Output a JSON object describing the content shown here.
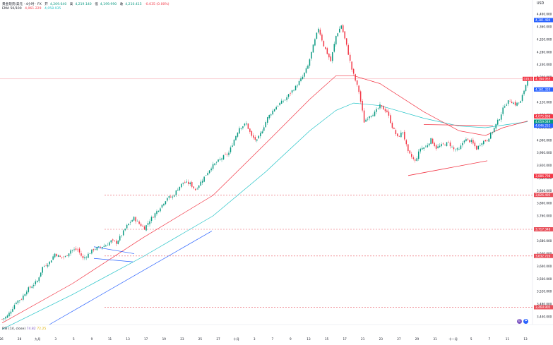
{
  "header": {
    "symbol": "黄金现货/美元 · 4小时 · FX",
    "open_label": "开",
    "open": "4,209.640",
    "high_label": "高",
    "high": "4,219.140",
    "low_label": "低",
    "low": "4,199.990",
    "close_label": "收",
    "close": "4,210.415",
    "change": "-0.035 (0.00%)",
    "ema_label": "EMA 50/100",
    "ema50": "4,061.229",
    "ema100": "4,058.935"
  },
  "axis": {
    "currency": "USD"
  },
  "rsi": {
    "label": "RSI (14, close)",
    "value": "74.82",
    "ma": "72.25"
  },
  "colors": {
    "up": "#089981",
    "down": "#f23645",
    "ema50": "#f23645",
    "ema100": "#22c3c7",
    "trendline_blue": "#2962ff",
    "trendline_red": "#f23645",
    "level_dash": "#e8505b"
  },
  "chart_data": {
    "type": "candlestick",
    "title": "黄金现货/美元 · 4小时 · FX",
    "ylabel": "USD",
    "ylim": [
      3415,
      4405
    ],
    "y_ticks": [
      "4,400.000",
      "4,360.000",
      "4,320.000",
      "4,280.000",
      "4,240.000",
      "4,200.000",
      "4,160.000",
      "4,120.000",
      "4,080.000",
      "4,040.000",
      "4,000.000",
      "3,960.000",
      "3,920.000",
      "3,880.000",
      "3,840.000",
      "3,800.000",
      "3,760.000",
      "3,720.000",
      "3,680.000",
      "3,640.000",
      "3,600.000",
      "3,560.000",
      "3,520.000",
      "3,480.000",
      "3,440.000"
    ],
    "x_ticks": [
      "26",
      "28",
      "九月",
      "3",
      "5",
      "9",
      "11",
      "13",
      "17",
      "19",
      "23",
      "25",
      "27",
      "十月",
      "3",
      "7",
      "9",
      "13",
      "15",
      "17",
      "21",
      "23",
      "27",
      "29",
      "31",
      "十一月",
      "5",
      "7",
      "11",
      "13"
    ],
    "price_path": [
      [
        0,
        3432
      ],
      [
        3,
        3442
      ],
      [
        6,
        3468
      ],
      [
        8,
        3488
      ],
      [
        11,
        3497
      ],
      [
        14,
        3524
      ],
      [
        17,
        3538
      ],
      [
        20,
        3553
      ],
      [
        23,
        3597
      ],
      [
        27,
        3613
      ],
      [
        30,
        3640
      ],
      [
        33,
        3629
      ],
      [
        36,
        3630
      ],
      [
        39,
        3651
      ],
      [
        43,
        3653
      ],
      [
        46,
        3624
      ],
      [
        49,
        3638
      ],
      [
        52,
        3654
      ],
      [
        55,
        3659
      ],
      [
        59,
        3667
      ],
      [
        62,
        3680
      ],
      [
        65,
        3675
      ],
      [
        68,
        3700
      ],
      [
        71,
        3728
      ],
      [
        75,
        3753
      ],
      [
        78,
        3735
      ],
      [
        81,
        3721
      ],
      [
        84,
        3746
      ],
      [
        87,
        3767
      ],
      [
        91,
        3795
      ],
      [
        94,
        3818
      ],
      [
        97,
        3820
      ],
      [
        100,
        3847
      ],
      [
        103,
        3866
      ],
      [
        107,
        3862
      ],
      [
        110,
        3843
      ],
      [
        113,
        3867
      ],
      [
        116,
        3891
      ],
      [
        119,
        3915
      ],
      [
        123,
        3934
      ],
      [
        126,
        3948
      ],
      [
        129,
        3960
      ],
      [
        132,
        4002
      ],
      [
        135,
        4040
      ],
      [
        139,
        4052
      ],
      [
        142,
        4012
      ],
      [
        145,
        3998
      ],
      [
        148,
        4032
      ],
      [
        151,
        4071
      ],
      [
        155,
        4101
      ],
      [
        158,
        4117
      ],
      [
        161,
        4129
      ],
      [
        164,
        4151
      ],
      [
        167,
        4169
      ],
      [
        171,
        4201
      ],
      [
        174,
        4236
      ],
      [
        177,
        4299
      ],
      [
        180,
        4356
      ],
      [
        183,
        4301
      ],
      [
        187,
        4251
      ],
      [
        190,
        4331
      ],
      [
        193,
        4365
      ],
      [
        196,
        4300
      ],
      [
        199,
        4225
      ],
      [
        203,
        4155
      ],
      [
        206,
        4059
      ],
      [
        209,
        4079
      ],
      [
        212,
        4087
      ],
      [
        215,
        4109
      ],
      [
        219,
        4091
      ],
      [
        222,
        4043
      ],
      [
        225,
        4009
      ],
      [
        228,
        4027
      ],
      [
        231,
        3961
      ],
      [
        235,
        3933
      ],
      [
        238,
        3974
      ],
      [
        241,
        3979
      ],
      [
        244,
        4002
      ],
      [
        247,
        3976
      ],
      [
        251,
        3986
      ],
      [
        254,
        3992
      ],
      [
        257,
        3971
      ],
      [
        260,
        3969
      ],
      [
        263,
        4003
      ],
      [
        267,
        3996
      ],
      [
        270,
        3973
      ],
      [
        273,
        3995
      ],
      [
        276,
        4001
      ],
      [
        279,
        4028
      ],
      [
        283,
        4071
      ],
      [
        286,
        4113
      ],
      [
        289,
        4127
      ],
      [
        292,
        4114
      ],
      [
        295,
        4122
      ],
      [
        299,
        4195
      ]
    ],
    "ema50": [
      [
        0,
        3420
      ],
      [
        40,
        3545
      ],
      [
        80,
        3690
      ],
      [
        120,
        3825
      ],
      [
        150,
        3990
      ],
      [
        175,
        4130
      ],
      [
        190,
        4205
      ],
      [
        200,
        4205
      ],
      [
        215,
        4180
      ],
      [
        240,
        4090
      ],
      [
        260,
        4030
      ],
      [
        275,
        4015
      ],
      [
        285,
        4040
      ],
      [
        299,
        4061
      ]
    ],
    "ema100": [
      [
        0,
        3400
      ],
      [
        40,
        3510
      ],
      [
        80,
        3630
      ],
      [
        120,
        3760
      ],
      [
        150,
        3900
      ],
      [
        175,
        4030
      ],
      [
        190,
        4095
      ],
      [
        200,
        4118
      ],
      [
        215,
        4110
      ],
      [
        240,
        4070
      ],
      [
        260,
        4045
      ],
      [
        275,
        4040
      ],
      [
        285,
        4048
      ],
      [
        299,
        4059
      ]
    ],
    "horizontal_levels": [
      {
        "price": 3826.495,
        "label": "3,826.495"
      },
      {
        "price": 3717.348,
        "label": "3,717.348"
      },
      {
        "price": 3,
        "label": ""
      },
      {
        "price": 3632.72,
        "label": "3,632.720"
      },
      {
        "price": 3469.905,
        "label": "3,469.905"
      }
    ],
    "price_tags": [
      {
        "price": 4381.484,
        "label": "4,381.484",
        "color": "#2962ff"
      },
      {
        "price": 4194.955,
        "label": "4,194.955",
        "color": "#f23645",
        "prefix": "GOLD"
      },
      {
        "price": 4161.32,
        "label": "4,161.320",
        "color": "#2962ff"
      },
      {
        "price": 4075.898,
        "label": "4,075.898",
        "color": "#f23645"
      },
      {
        "price": 4059.049,
        "label": "4,059.049",
        "color": "#089981"
      },
      {
        "price": 4046.252,
        "label": "4,046.252",
        "color": "#2962ff"
      },
      {
        "price": 3886.798,
        "label": "3,886.798",
        "color": "#f23645"
      }
    ],
    "grid": false,
    "legend": "top-left"
  }
}
